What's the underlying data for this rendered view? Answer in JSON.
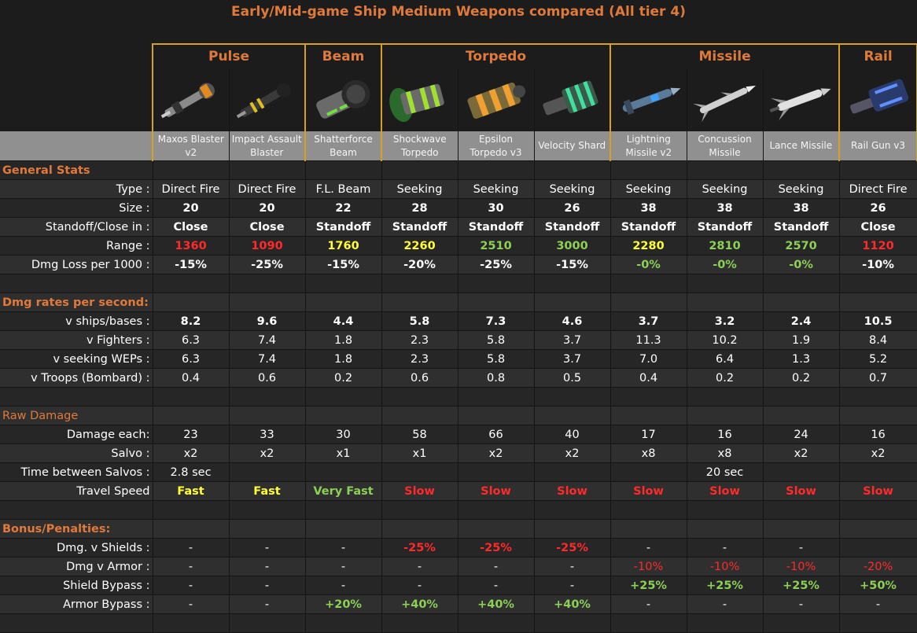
{
  "title": "Early/Mid-game Ship Medium Weapons compared (All tier 4)",
  "groups": [
    {
      "name": "Pulse",
      "span": 2
    },
    {
      "name": "Beam",
      "span": 1
    },
    {
      "name": "Torpedo",
      "span": 3
    },
    {
      "name": "Missile",
      "span": 3
    },
    {
      "name": "Rail",
      "span": 1
    }
  ],
  "weapons": [
    {
      "line1": "Maxos Blaster",
      "line2": "v2"
    },
    {
      "line1": "Impact Assault",
      "line2": "Blaster"
    },
    {
      "line1": "Shatterforce",
      "line2": "Beam"
    },
    {
      "line1": "Shockwave",
      "line2": "Torpedo"
    },
    {
      "line1": "Epsilon",
      "line2": "Torpedo v3"
    },
    {
      "line1": "Velocity Shard",
      "line2": ""
    },
    {
      "line1": "Lightning",
      "line2": "Missile  v2"
    },
    {
      "line1": "Concussion",
      "line2": "Missile"
    },
    {
      "line1": "Lance Missile",
      "line2": ""
    },
    {
      "line1": "Rail Gun v3",
      "line2": ""
    }
  ],
  "sections": {
    "general": "General Stats",
    "dmg_rates": "Dmg rates per second:",
    "raw": "Raw Damage",
    "bonus": "Bonus/Penalties:"
  },
  "rows": {
    "type": {
      "label": "Type :",
      "values": [
        "Direct Fire",
        "Direct Fire",
        "F.L. Beam",
        "Seeking",
        "Seeking",
        "Seeking",
        "Seeking",
        "Seeking",
        "Seeking",
        "Direct Fire"
      ]
    },
    "size": {
      "label": "Size :",
      "values": [
        "20",
        "20",
        "22",
        "28",
        "30",
        "26",
        "38",
        "38",
        "38",
        "26"
      ]
    },
    "standoff": {
      "label": "Standoff/Close in :",
      "values": [
        "Close",
        "Close",
        "Standoff",
        "Standoff",
        "Standoff",
        "Standoff",
        "Standoff",
        "Standoff",
        "Standoff",
        "Close"
      ]
    },
    "range": {
      "label": "Range :",
      "values": [
        "1360",
        "1090",
        "1760",
        "2260",
        "2510",
        "3000",
        "2280",
        "2810",
        "2570",
        "1120"
      ]
    },
    "dmgloss": {
      "label": "Dmg Loss per 1000 :",
      "values": [
        "-15%",
        "-25%",
        "-15%",
        "-20%",
        "-25%",
        "-15%",
        "-0%",
        "-0%",
        "-0%",
        "-10%"
      ]
    },
    "vships": {
      "label": "v ships/bases :",
      "values": [
        "8.2",
        "9.6",
        "4.4",
        "5.8",
        "7.3",
        "4.6",
        "3.7",
        "3.2",
        "2.4",
        "10.5"
      ]
    },
    "vfighters": {
      "label": "v Fighters :",
      "values": [
        "6.3",
        "7.4",
        "1.8",
        "2.3",
        "5.8",
        "3.7",
        "11.3",
        "10.2",
        "1.9",
        "8.4"
      ]
    },
    "vseeking": {
      "label": "v seeking WEPs :",
      "values": [
        "6.3",
        "7.4",
        "1.8",
        "2.3",
        "5.8",
        "3.7",
        "7.0",
        "6.4",
        "1.3",
        "5.2"
      ]
    },
    "vtroops": {
      "label": "v Troops (Bombard) :",
      "values": [
        "0.4",
        "0.6",
        "0.2",
        "0.6",
        "0.8",
        "0.5",
        "0.4",
        "0.2",
        "0.2",
        "0.7"
      ]
    },
    "dmgeach": {
      "label": "Damage each:",
      "values": [
        "23",
        "33",
        "30",
        "58",
        "66",
        "40",
        "17",
        "16",
        "24",
        "16"
      ]
    },
    "salvo": {
      "label": "Salvo :",
      "values": [
        "x2",
        "x2",
        "x1",
        "x1",
        "x2",
        "x2",
        "x8",
        "x8",
        "x2",
        "x2"
      ]
    },
    "timebetween": {
      "label": "Time between Salvos :",
      "values": [
        "2.8 sec",
        "",
        "",
        "",
        "",
        "",
        "",
        "20 sec",
        "",
        ""
      ]
    },
    "travel": {
      "label": "Travel Speed",
      "values": [
        "Fast",
        "Fast",
        "Very Fast",
        "Slow",
        "Slow",
        "Slow",
        "Slow",
        "Slow",
        "Slow",
        "Slow"
      ]
    },
    "vshields": {
      "label": "Dmg. v Shields :",
      "values": [
        "-",
        "-",
        "-",
        "-25%",
        "-25%",
        "-25%",
        "-",
        "-",
        "-",
        ""
      ]
    },
    "varmor": {
      "label": "Dmg v Armor :",
      "values": [
        "-",
        "-",
        "-",
        "-",
        "-",
        "-",
        "-10%",
        "-10%",
        "-10%",
        "-20%"
      ]
    },
    "shieldbypass": {
      "label": "Shield Bypass :",
      "values": [
        "-",
        "-",
        "-",
        "-",
        "-",
        "-",
        "+25%",
        "+25%",
        "+25%",
        "+50%"
      ]
    },
    "armorbypass": {
      "label": "Armor Bypass :",
      "values": [
        "-",
        "-",
        "+20%",
        "+40%",
        "+40%",
        "+40%",
        "-",
        "-",
        "-",
        "-"
      ]
    }
  },
  "colors": {
    "accent_orange": "#e07a3a",
    "group_border": "#d8a022",
    "red": "#ff2a2a",
    "yellow": "#ffff33",
    "green": "#8cd055"
  },
  "icons": [
    "blaster-icon",
    "assault-blaster-icon",
    "beam-icon",
    "shockwave-torpedo-icon",
    "epsilon-torpedo-icon",
    "velocity-shard-icon",
    "lightning-missile-icon",
    "concussion-missile-icon",
    "lance-missile-icon",
    "rail-gun-icon"
  ]
}
